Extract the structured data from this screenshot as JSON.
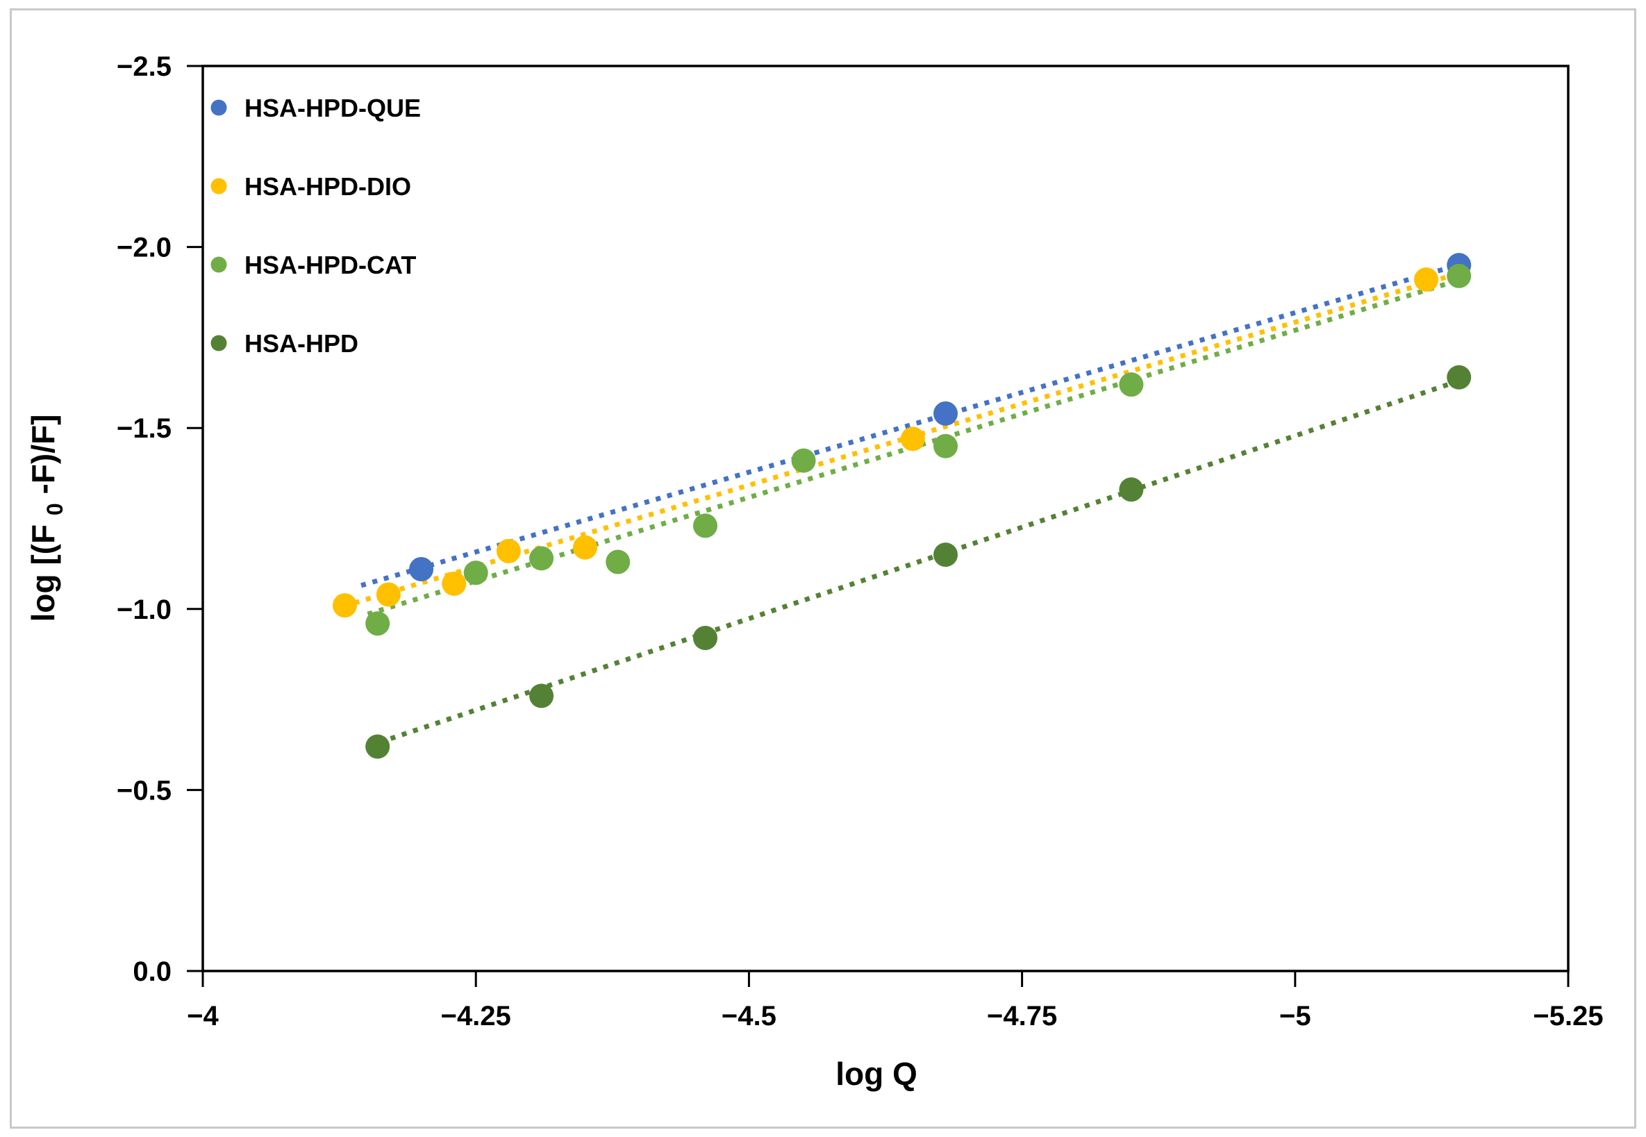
{
  "figure": {
    "background": "#ffffff",
    "border_color": "#c9c9c9",
    "axis_color": "#000000",
    "text_color": "#000000"
  },
  "chart_data": {
    "type": "scatter",
    "title": "",
    "xlabel": "log Q",
    "ylabel": "log [(F0-F)/F]",
    "ylabel_parts": {
      "prefix": "log [(F",
      "sub": "0",
      "suffix": "-F)/F]"
    },
    "grid": false,
    "legend_position": "top-left-inside",
    "x_axis": {
      "min": -4.0,
      "max": -5.25,
      "direction": "values decrease left to right",
      "tick_values": [
        -4.0,
        -4.25,
        -4.5,
        -4.75,
        -5.0,
        -5.25
      ],
      "tick_labels": [
        "−4",
        "−4.25",
        "−4.5",
        "−4.75",
        "−5",
        "−5.25"
      ]
    },
    "y_axis": {
      "min": -2.5,
      "max": 0.0,
      "direction": "values increase top to bottom (inverted axis, -2.5 at top)",
      "tick_values": [
        -2.5,
        -2.0,
        -1.5,
        -1.0,
        -0.5,
        0.0
      ],
      "tick_labels": [
        "−2.5",
        "−2.0",
        "−1.5",
        "−1.0",
        "−0.5",
        "0.0"
      ]
    },
    "series": [
      {
        "name": "HSA-HPD-QUE",
        "color": "#4472C4",
        "marker": "circle",
        "line_style": "dotted-trendline",
        "points": [
          [
            -4.2,
            -1.11
          ],
          [
            -4.68,
            -1.54
          ],
          [
            -5.15,
            -1.95
          ]
        ],
        "trend": {
          "slope": 0.8814,
          "intercept": 2.5884,
          "x1": -4.145,
          "x2": -5.16
        }
      },
      {
        "name": "HSA-HPD-DIO",
        "color": "#FFC000",
        "marker": "circle",
        "line_style": "dotted-trendline",
        "points": [
          [
            -4.13,
            -1.01
          ],
          [
            -4.17,
            -1.04
          ],
          [
            -4.23,
            -1.07
          ],
          [
            -4.28,
            -1.16
          ],
          [
            -4.35,
            -1.17
          ],
          [
            -4.65,
            -1.47
          ],
          [
            -5.12,
            -1.91
          ]
        ],
        "trend": {
          "slope": 0.9004,
          "intercept": 2.7098,
          "x1": -4.139,
          "x2": -5.153
        }
      },
      {
        "name": "HSA-HPD-CAT",
        "color": "#70AD47",
        "marker": "circle",
        "line_style": "dotted-trendline",
        "points": [
          [
            -4.16,
            -0.96
          ],
          [
            -4.25,
            -1.1
          ],
          [
            -4.31,
            -1.14
          ],
          [
            -4.38,
            -1.13
          ],
          [
            -4.46,
            -1.23
          ],
          [
            -4.55,
            -1.41
          ],
          [
            -4.68,
            -1.45
          ],
          [
            -4.85,
            -1.62
          ],
          [
            -5.15,
            -1.92
          ]
        ],
        "trend": {
          "slope": 0.9235,
          "intercept": 2.8475,
          "x1": -4.151,
          "x2": -5.16
        }
      },
      {
        "name": "HSA-HPD",
        "color": "#548235",
        "marker": "circle",
        "line_style": "dotted-trendline",
        "points": [
          [
            -4.16,
            -0.62
          ],
          [
            -4.31,
            -0.76
          ],
          [
            -4.46,
            -0.92
          ],
          [
            -4.68,
            -1.15
          ],
          [
            -4.85,
            -1.33
          ],
          [
            -5.15,
            -1.64
          ]
        ],
        "trend": {
          "slope": 1.0102,
          "intercept": 3.5725,
          "x1": -4.172,
          "x2": -5.14
        }
      }
    ]
  }
}
